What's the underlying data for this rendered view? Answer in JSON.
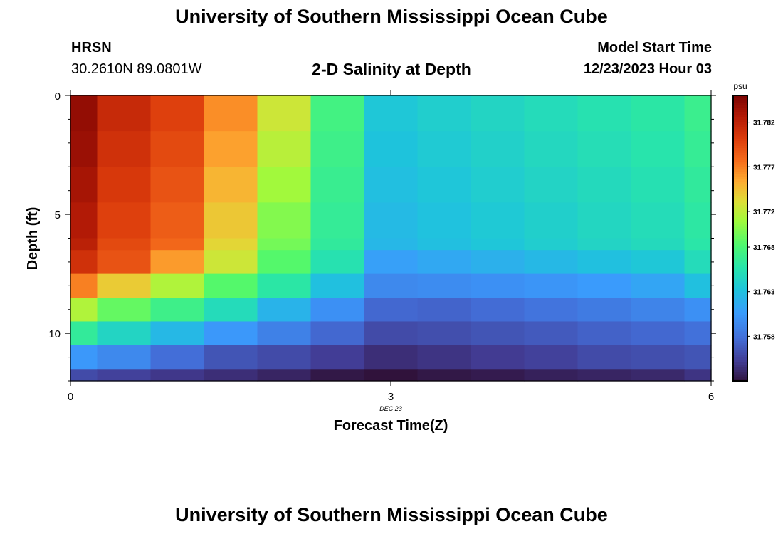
{
  "header": {
    "title": "University of Southern Mississippi Ocean Cube",
    "station": "HRSN",
    "coords": "30.2610N  89.0801W",
    "subtitle": "2-D Salinity at Depth",
    "model_label": "Model Start Time",
    "model_time": "12/23/2023 Hour 03"
  },
  "footer": {
    "title": "University of Southern Mississippi Ocean Cube"
  },
  "chart_data": {
    "type": "heatmap",
    "title": "2-D Salinity at Depth",
    "xlabel": "Forecast Time(Z)",
    "ylabel": "Depth (ft)",
    "x_annotation": "DEC 23",
    "xlim": [
      0,
      6
    ],
    "ylim": [
      0,
      12
    ],
    "xticks": [
      0,
      3,
      6
    ],
    "yticks": [
      0,
      5,
      10
    ],
    "x_edges": [
      0,
      0.25,
      0.75,
      1.25,
      1.75,
      2.25,
      2.75,
      3.25,
      3.75,
      4.25,
      4.75,
      5.25,
      5.75,
      6
    ],
    "y_edges": [
      0,
      1.5,
      3,
      4.5,
      6,
      6.5,
      7.5,
      8.5,
      9.5,
      10.5,
      11.5,
      12
    ],
    "colorbar": {
      "label": "psu",
      "min": 31.753,
      "max": 31.785,
      "ticks": [
        31.758,
        31.763,
        31.768,
        31.772,
        31.777,
        31.782
      ],
      "tick_labels": [
        "31.758",
        "31.763",
        "31.768",
        "31.772",
        "31.777",
        "31.782"
      ]
    },
    "values": [
      [
        31.784,
        31.7815,
        31.78,
        31.7765,
        31.7725,
        31.7675,
        31.7635,
        31.764,
        31.7645,
        31.765,
        31.7655,
        31.766,
        31.767
      ],
      [
        31.7837,
        31.781,
        31.7795,
        31.7758,
        31.7718,
        31.7672,
        31.7632,
        31.7637,
        31.7642,
        31.7647,
        31.7652,
        31.7657,
        31.7667
      ],
      [
        31.7832,
        31.7805,
        31.779,
        31.775,
        31.771,
        31.7669,
        31.7629,
        31.7634,
        31.7639,
        31.7644,
        31.7649,
        31.7654,
        31.7664
      ],
      [
        31.7827,
        31.78,
        31.7785,
        31.7742,
        31.77,
        31.7666,
        31.7626,
        31.7631,
        31.7636,
        31.7641,
        31.7646,
        31.7651,
        31.7661
      ],
      [
        31.7822,
        31.7795,
        31.778,
        31.7735,
        31.7695,
        31.7664,
        31.7624,
        31.7629,
        31.7634,
        31.7639,
        31.7644,
        31.7649,
        31.7659
      ],
      [
        31.781,
        31.779,
        31.776,
        31.7725,
        31.7685,
        31.7655,
        31.761,
        31.7615,
        31.762,
        31.7625,
        31.763,
        31.7635,
        31.765
      ],
      [
        31.777,
        31.774,
        31.7715,
        31.7685,
        31.766,
        31.763,
        31.7595,
        31.7597,
        31.76,
        31.7603,
        31.7607,
        31.7613,
        31.763
      ],
      [
        31.7715,
        31.769,
        31.7672,
        31.765,
        31.7622,
        31.76,
        31.7575,
        31.7573,
        31.7577,
        31.7582,
        31.7586,
        31.7592,
        31.76
      ],
      [
        31.7665,
        31.7645,
        31.7625,
        31.7605,
        31.759,
        31.7575,
        31.756,
        31.7562,
        31.7565,
        31.7568,
        31.7572,
        31.7575,
        31.758
      ],
      [
        31.7605,
        31.7595,
        31.7578,
        31.7565,
        31.756,
        31.7553,
        31.7545,
        31.7548,
        31.7552,
        31.7555,
        31.756,
        31.7562,
        31.7565
      ],
      [
        31.756,
        31.7555,
        31.755,
        31.7545,
        31.754,
        31.7533,
        31.753,
        31.7533,
        31.7535,
        31.7538,
        31.754,
        31.7542,
        31.7548
      ]
    ]
  }
}
